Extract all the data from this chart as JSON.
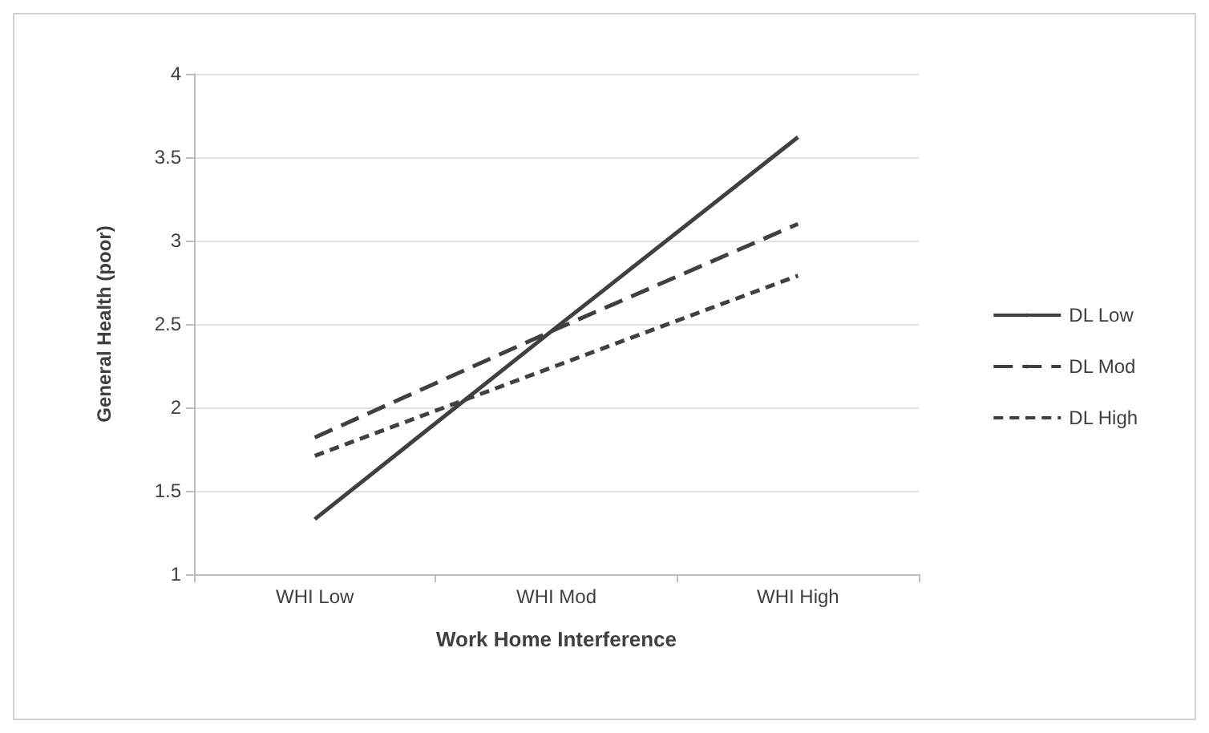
{
  "chart_data": {
    "type": "line",
    "xlabel": "Work Home Interference",
    "ylabel": "General Health (poor)",
    "categories": [
      "WHI Low",
      "WHI Mod",
      "WHI High"
    ],
    "series": [
      {
        "name": "DL Low",
        "color": "#404040",
        "line_style": "solid",
        "values": [
          1.33,
          2.48,
          3.62
        ]
      },
      {
        "name": "DL Mod",
        "color": "#404040",
        "line_style": "dashed",
        "values": [
          1.82,
          2.47,
          3.1
        ]
      },
      {
        "name": "DL High",
        "color": "#404040",
        "line_style": "dotted",
        "values": [
          1.71,
          2.25,
          2.79
        ]
      }
    ],
    "ylim": [
      1,
      4
    ],
    "yticks": [
      1,
      1.5,
      2,
      2.5,
      3,
      3.5,
      4
    ],
    "grid": "y",
    "legend": "right",
    "marker": "none"
  }
}
